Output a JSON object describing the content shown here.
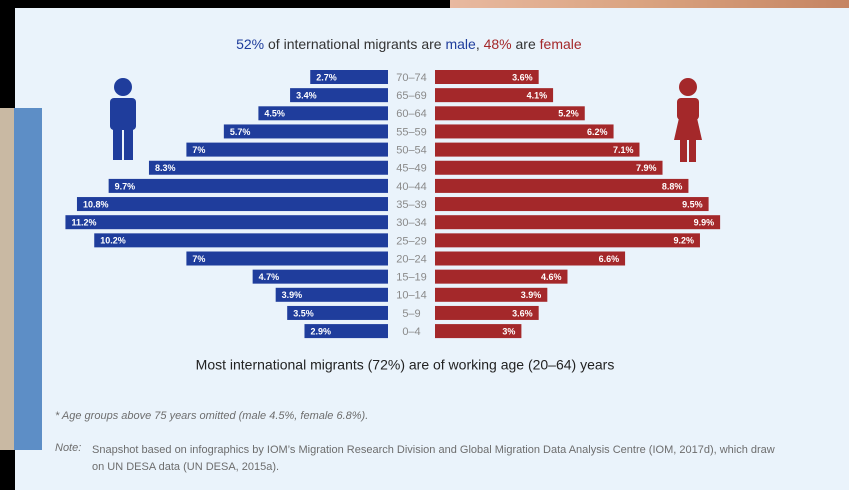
{
  "chart_data": {
    "type": "pyramid",
    "title": [
      "52%",
      " of international migrants are ",
      "male",
      ", ",
      "48%",
      " are ",
      "female"
    ],
    "categories": [
      "70–74",
      "65–69",
      "60–64",
      "55–59",
      "50–54",
      "45–49",
      "40–44",
      "35–39",
      "30–34",
      "25–29",
      "20–24",
      "15–19",
      "10–14",
      "5–9",
      "0–4"
    ],
    "series": [
      {
        "color": "#1f3d9c",
        "values": [
          2.7,
          3.4,
          4.5,
          5.7,
          7,
          8.3,
          9.7,
          10.8,
          11.2,
          10.2,
          7,
          4.7,
          3.9,
          3.5,
          2.9
        ],
        "value_labels": [
          "2.7%",
          "3.4%",
          "4.5%",
          "5.7%",
          "7%",
          "8.3%",
          "9.7%",
          "10.8%",
          "11.2%",
          "10.2%",
          "7%",
          "4.7%",
          "3.9%",
          "3.5%",
          "2.9%"
        ]
      },
      {
        "color": "#a4282a",
        "values": [
          3.6,
          4.1,
          5.2,
          6.2,
          7.1,
          7.9,
          8.8,
          9.5,
          9.9,
          9.2,
          6.6,
          4.6,
          3.9,
          3.6,
          3
        ],
        "value_labels": [
          "3.6%",
          "4.1%",
          "5.2%",
          "6.2%",
          "7.1%",
          "7.9%",
          "8.8%",
          "9.5%",
          "9.9%",
          "9.2%",
          "6.6%",
          "4.6%",
          "3.9%",
          "3.6%",
          "3%"
        ]
      }
    ],
    "subtitle": "Most international migrants (72%) are of working age (20–64) years",
    "footnote": "* Age groups above 75 years omitted (male 4.5%, female 6.8%).",
    "note_label": "Note:",
    "note": "Snapshot based on infographics by IOM’s Migration Research Division and Global Migration Data Analysis Centre (IOM, 2017d), which draw on UN DESA data (UN DESA, 2015a)."
  }
}
